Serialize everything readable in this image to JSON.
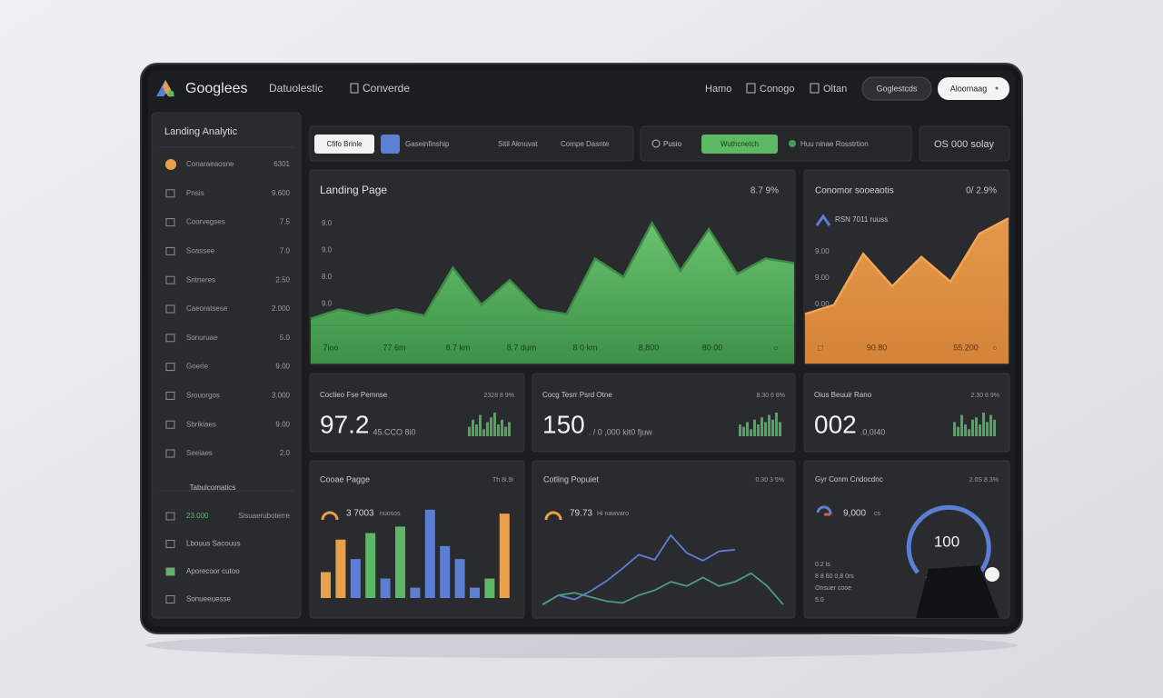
{
  "header": {
    "brand": "Googlees",
    "nav": [
      "Datuolestic",
      "Converde"
    ],
    "links": [
      "Hamo",
      "Conogo",
      "Oltan"
    ],
    "buttons": [
      "Goglestcds",
      "Aloomaag"
    ]
  },
  "sidebar": {
    "title": "Landing Analytic",
    "items": [
      {
        "label": "Conaraeaosne",
        "value": "6301"
      },
      {
        "label": "Pnsis",
        "value": "9.600"
      },
      {
        "label": "Coorvegses",
        "value": "7.5"
      },
      {
        "label": "Soassee",
        "value": "7.0"
      },
      {
        "label": "Sritneres",
        "value": "2.50"
      },
      {
        "label": "Caeoratsese",
        "value": "2.000"
      },
      {
        "label": "Sonuruae",
        "value": "5.0"
      },
      {
        "label": "Goerie",
        "value": "9.00"
      },
      {
        "label": "Srouorgos",
        "value": "3.000"
      },
      {
        "label": "Sbrikiaes",
        "value": "9.00"
      },
      {
        "label": "Seeiaes",
        "value": "2.0"
      }
    ],
    "section": "Tabulcomatics",
    "bottom_items": [
      {
        "label": "23.000",
        "value": "Sisuaeruboterre"
      },
      {
        "label": "Lbouus Sacouus"
      },
      {
        "label": "Aporecoor cutoo"
      },
      {
        "label": "Sonueeuesse"
      }
    ]
  },
  "toolbar": {
    "left": [
      "Cfifo Brinle",
      "Gaseinfinship",
      "Sitil Aknuvat",
      "Compe Dasnte"
    ],
    "right": [
      "Pusio",
      "Wuthcnetch",
      "Huu ninae Rosstrtion"
    ],
    "extra": "OS 000 solay"
  },
  "landing_chart": {
    "title": "Landing Page",
    "badge": "8.7 9%",
    "y_labels": [
      "9.0",
      "9.0",
      "8.0",
      "9.0"
    ],
    "x_labels": [
      "7ioo",
      "77.6m",
      "8.7 km",
      "8.7 dum",
      "8 0 km",
      "8,800",
      "80.00",
      "○"
    ],
    "ylim": [
      0,
      100
    ],
    "values": [
      29,
      35,
      31,
      35,
      31,
      62,
      38,
      54,
      35,
      32,
      68,
      56,
      91,
      60,
      87,
      58,
      68,
      65
    ],
    "color": "#5cb865"
  },
  "conversion_chart": {
    "title": "Conomor sooeaotis",
    "badge": "0/ 2.9%",
    "subtitle": "RSN 7011 ruuss",
    "y_labels": [
      "9.00",
      "9.00",
      "0.00"
    ],
    "x_labels": [
      "□",
      "90.80",
      "55.200",
      "○"
    ],
    "ylim": [
      0,
      100
    ],
    "values": [
      32,
      38,
      71,
      50,
      69,
      53,
      84,
      94
    ],
    "color": "#eb9a48"
  },
  "stat_cards": [
    {
      "title": "Coctieo Fse Pemnse",
      "badge": "2328 8 9%",
      "value": "97.2",
      "sub": "45.CCO 8i0",
      "ylim": [
        0,
        10
      ],
      "bars": [
        4,
        7,
        5,
        9,
        3,
        6,
        8,
        10,
        5,
        7,
        4,
        6
      ]
    },
    {
      "title": "Cocg Tesrr Psrd Otne",
      "badge": "8.30 6 8%",
      "value": "150",
      "sub": ". / 0 ,000 kit0 fjuw",
      "ylim": [
        0,
        10
      ],
      "bars": [
        5,
        4,
        6,
        3,
        7,
        5,
        8,
        6,
        9,
        7,
        10,
        6
      ]
    },
    {
      "title": "Oius Beuuir Rano",
      "badge": "2.30 8 9%",
      "value": "002",
      "sub": ".0,0I40",
      "ylim": [
        0,
        10
      ],
      "bars": [
        6,
        4,
        9,
        5,
        3,
        7,
        8,
        5,
        10,
        6,
        9,
        7
      ]
    }
  ],
  "bar_card": {
    "title": "Cooae Pagge",
    "badge": "Th 8i.9i",
    "icon_text": "3 7003",
    "icon_sub": "nuosos",
    "ylim": [
      0,
      70
    ],
    "values": [
      20,
      45,
      30,
      50,
      15,
      55,
      8,
      68,
      40,
      30,
      8,
      15,
      65
    ],
    "colors": [
      "#e8a04a",
      "#e8a04a",
      "#5b7fd4",
      "#5cb865",
      "#5b7fd4",
      "#5cb865",
      "#5b7fd4",
      "#5b7fd4",
      "#5b7fd4",
      "#5b7fd4",
      "#5b7fd4",
      "#5cb865",
      "#e8a04a"
    ]
  },
  "line_card": {
    "title": "Cotling Popuiet",
    "badge": "0.30 3 5%",
    "icon_text": "79.73",
    "icon_sub": "Hi nawvaro",
    "ylim": [
      0,
      100
    ],
    "series": [
      {
        "color": "#5b7fd4",
        "values": [
          3,
          14,
          9,
          19,
          31,
          46,
          62,
          56,
          85,
          64,
          55,
          66,
          68,
          null,
          null,
          null
        ]
      },
      {
        "color": "#4a9a8a",
        "values": [
          3,
          14,
          17,
          12,
          7,
          5,
          14,
          20,
          30,
          25,
          35,
          25,
          30,
          40,
          25,
          3
        ]
      }
    ]
  },
  "gauge_card": {
    "title": "Gyr Conm Cndocdnc",
    "badge": "2.0S 8 3%",
    "icon_text": "9,000",
    "icon_sub": "cs",
    "lines": [
      "0.2 ls",
      "8 8 60 0,8 0rs",
      "Onsuer cooe",
      "5.0"
    ],
    "value": "100"
  }
}
